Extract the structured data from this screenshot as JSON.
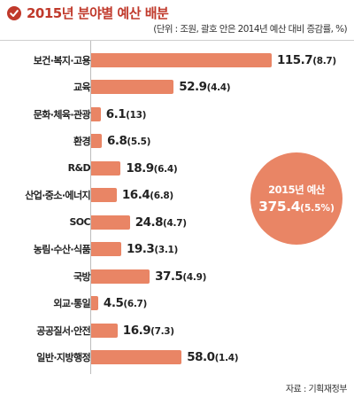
{
  "title": "2015년 분야별 예산 배분",
  "unit_note": "(단위 : 조원, 괄호 안은 2014년 예산 대비 증감률, %)",
  "source": "자료 : 기획재정부",
  "colors": {
    "bar": "#e98565",
    "title": "#c0392b",
    "circle": "#e98565"
  },
  "total": {
    "label": "2015년 예산",
    "value": "375.4",
    "change": "(5.5%)"
  },
  "chart_data": {
    "type": "bar",
    "orientation": "horizontal",
    "title": "2015년 분야별 예산 배분",
    "categories": [
      "보건·복지·고용",
      "교육",
      "문화·체육·관광",
      "환경",
      "R&D",
      "산업·중소·에너지",
      "SOC",
      "농림·수산·식품",
      "국방",
      "외교·통일",
      "공공질서·안전",
      "일반·지방행정"
    ],
    "values": [
      115.7,
      52.9,
      6.1,
      6.8,
      18.9,
      16.4,
      24.8,
      19.3,
      37.5,
      4.5,
      16.9,
      58.0
    ],
    "value_labels": [
      "115.7",
      "52.9",
      "6.1",
      "6.8",
      "18.9",
      "16.4",
      "24.8",
      "19.3",
      "37.5",
      "4.5",
      "16.9",
      "58.0"
    ],
    "change_labels": [
      "(8.7)",
      "(4.4)",
      "(13)",
      "(5.5)",
      "(6.4)",
      "(6.8)",
      "(4.7)",
      "(3.1)",
      "(4.9)",
      "(6.7)",
      "(7.3)",
      "(1.4)"
    ],
    "xlim": [
      0,
      115.7
    ]
  }
}
